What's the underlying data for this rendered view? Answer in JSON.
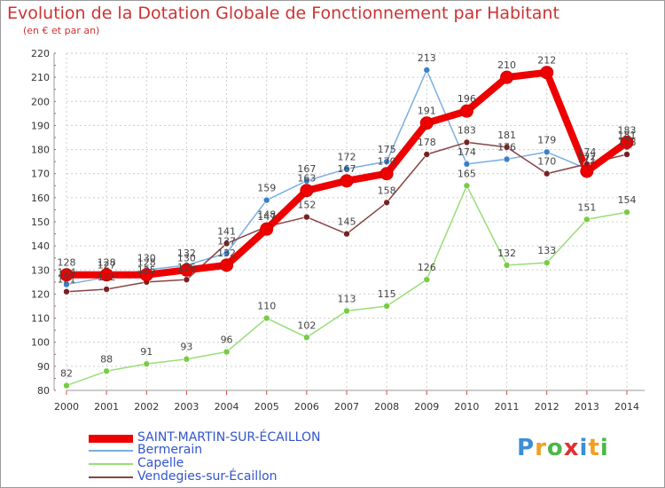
{
  "title": "Evolution de la Dotation Globale de Fonctionnement par Habitant",
  "subtitle": "(en € et par an)",
  "logo": {
    "letters": [
      "P",
      "r",
      "o",
      "x",
      "i",
      "t",
      "i"
    ],
    "colors": [
      "#3a8fd6",
      "#f0a020",
      "#4cb848",
      "#e03030",
      "#3a8fd6",
      "#f0a020",
      "#4cb848"
    ]
  },
  "chart_data": {
    "type": "line",
    "x": [
      "2000",
      "2001",
      "2002",
      "2003",
      "2004",
      "2005",
      "2006",
      "2007",
      "2008",
      "2009",
      "2010",
      "2011",
      "2012",
      "2013",
      "2014"
    ],
    "ylim": [
      80,
      220
    ],
    "yticks": [
      "80",
      "90",
      "100",
      "110",
      "120",
      "130",
      "140",
      "150",
      "160",
      "170",
      "180",
      "190",
      "200",
      "210",
      "220"
    ],
    "grid": true,
    "legend_position": "bottom-left",
    "series": [
      {
        "name": "SAINT-MARTIN-SUR-ÉCAILLON",
        "color": "#ee0000",
        "width": 8,
        "marker_color": "#ee0000",
        "marker_size": 7,
        "values": [
          128,
          128,
          128,
          130,
          132,
          147,
          163,
          167,
          170,
          191,
          196,
          210,
          212,
          171,
          183
        ],
        "labels": [
          "128",
          "128",
          "128",
          "130",
          "132",
          "147",
          "163",
          "167",
          "170",
          "191",
          "196",
          "210",
          "212",
          "171",
          "183"
        ]
      },
      {
        "name": "Bermerain",
        "color": "#7aaee0",
        "width": 1.5,
        "marker_color": "#3a80c8",
        "marker_size": 3.5,
        "values": [
          124,
          127,
          130,
          132,
          137,
          159,
          167,
          172,
          175,
          213,
          174,
          176,
          179,
          172,
          181
        ],
        "labels": [
          "124",
          "127",
          "130",
          "132",
          "137",
          "159",
          "167",
          "172",
          "175",
          "213",
          "174",
          "176",
          "179",
          "172",
          "181"
        ]
      },
      {
        "name": "Capelle",
        "color": "#99dd77",
        "width": 1.5,
        "marker_color": "#77cc44",
        "marker_size": 3.5,
        "values": [
          82,
          88,
          91,
          93,
          96,
          110,
          102,
          113,
          115,
          126,
          165,
          132,
          133,
          151,
          154
        ],
        "labels": [
          "82",
          "88",
          "91",
          "93",
          "96",
          "110",
          "102",
          "113",
          "115",
          "126",
          "165",
          "132",
          "133",
          "151",
          "154"
        ]
      },
      {
        "name": "Vendegies-sur-Écaillon",
        "color": "#884444",
        "width": 1.5,
        "marker_color": "#772222",
        "marker_size": 3.5,
        "values": [
          121,
          122,
          125,
          126,
          141,
          148,
          152,
          145,
          158,
          178,
          183,
          181,
          170,
          174,
          178
        ],
        "labels": [
          "121",
          "122",
          "125",
          "126",
          "141",
          "148",
          "152",
          "145",
          "158",
          "178",
          "183",
          "181",
          "170",
          "174",
          "178"
        ]
      }
    ]
  }
}
